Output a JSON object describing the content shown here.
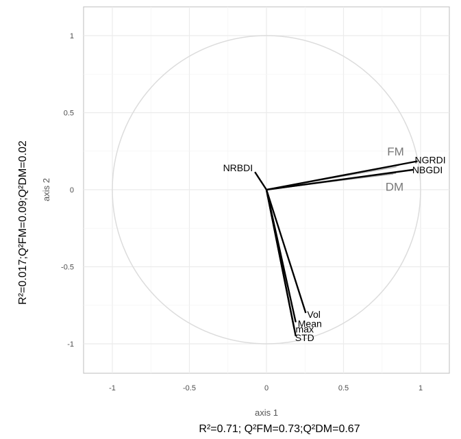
{
  "chart_data": {
    "type": "scatter",
    "subtype": "correlation-circle",
    "title": "",
    "xlabel": "axis 1",
    "ylabel": "axis 2",
    "xlim": [
      -1.2,
      1.2
    ],
    "ylim": [
      -1.2,
      1.17
    ],
    "x_ticks": [
      -1,
      -0.5,
      0,
      0.5,
      1
    ],
    "x_tick_labels": [
      "-1",
      "-0.5",
      "0",
      "0.5",
      "1"
    ],
    "y_ticks": [
      -1,
      -0.5,
      0,
      0.5,
      1
    ],
    "y_tick_labels": [
      "-1",
      "-0.5",
      "0",
      "0.5",
      "1"
    ],
    "grid": true,
    "unit_circle": true,
    "x_stats": "R²=0.71; Q²FM=0.73;Q²DM=0.67",
    "y_stats": "R²=0.017;Q²FM=0.09;Q²DM=0.02",
    "variables": [
      {
        "name": "NGRDI",
        "x": 0.98,
        "y": 0.185,
        "color": "#000000"
      },
      {
        "name": "NBGDI",
        "x": 0.955,
        "y": 0.13,
        "color": "#000000"
      },
      {
        "name": "NRBDI",
        "x": -0.075,
        "y": 0.115,
        "color": "#000000"
      },
      {
        "name": "Vol",
        "x": 0.255,
        "y": -0.8,
        "color": "#000000"
      },
      {
        "name": "Mean",
        "x": 0.19,
        "y": -0.86,
        "color": "#000000"
      },
      {
        "name": "max",
        "x": 0.18,
        "y": -0.9,
        "color": "#000000"
      },
      {
        "name": "STD",
        "x": 0.19,
        "y": -0.95,
        "color": "#000000"
      }
    ],
    "groups": [
      {
        "name": "FM",
        "x": 0.86,
        "y": 0.16,
        "color": "#777777"
      },
      {
        "name": "DM",
        "x": 0.84,
        "y": 0.11,
        "color": "#777777"
      }
    ]
  }
}
